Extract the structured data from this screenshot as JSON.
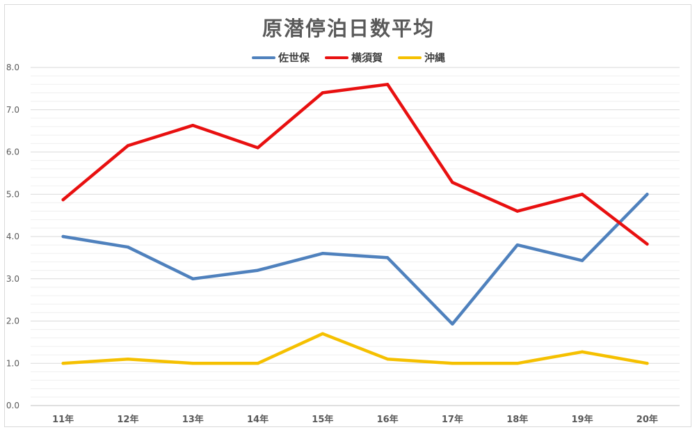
{
  "chart_data": {
    "type": "line",
    "title": "原潜停泊日数平均",
    "categories": [
      "11年",
      "12年",
      "13年",
      "14年",
      "15年",
      "16年",
      "17年",
      "18年",
      "19年",
      "20年"
    ],
    "ylim": [
      0,
      8
    ],
    "yticks": [
      "0.0",
      "1.0",
      "2.0",
      "3.0",
      "4.0",
      "5.0",
      "6.0",
      "7.0",
      "8.0"
    ],
    "grid": true,
    "legend_position": "top",
    "xlabel": "",
    "ylabel": "",
    "series": [
      {
        "name": "佐世保",
        "color": "#4f81bd",
        "values": [
          4.0,
          3.75,
          3.0,
          3.2,
          3.6,
          3.5,
          1.93,
          3.8,
          3.43,
          5.0
        ]
      },
      {
        "name": "横須賀",
        "color": "#e81010",
        "values": [
          4.87,
          6.15,
          6.63,
          6.1,
          7.4,
          7.6,
          5.28,
          4.6,
          5.0,
          3.82
        ]
      },
      {
        "name": "沖縄",
        "color": "#f5c000",
        "values": [
          1.0,
          1.1,
          1.0,
          1.0,
          1.7,
          1.1,
          1.0,
          1.0,
          1.27,
          1.0
        ]
      }
    ]
  }
}
